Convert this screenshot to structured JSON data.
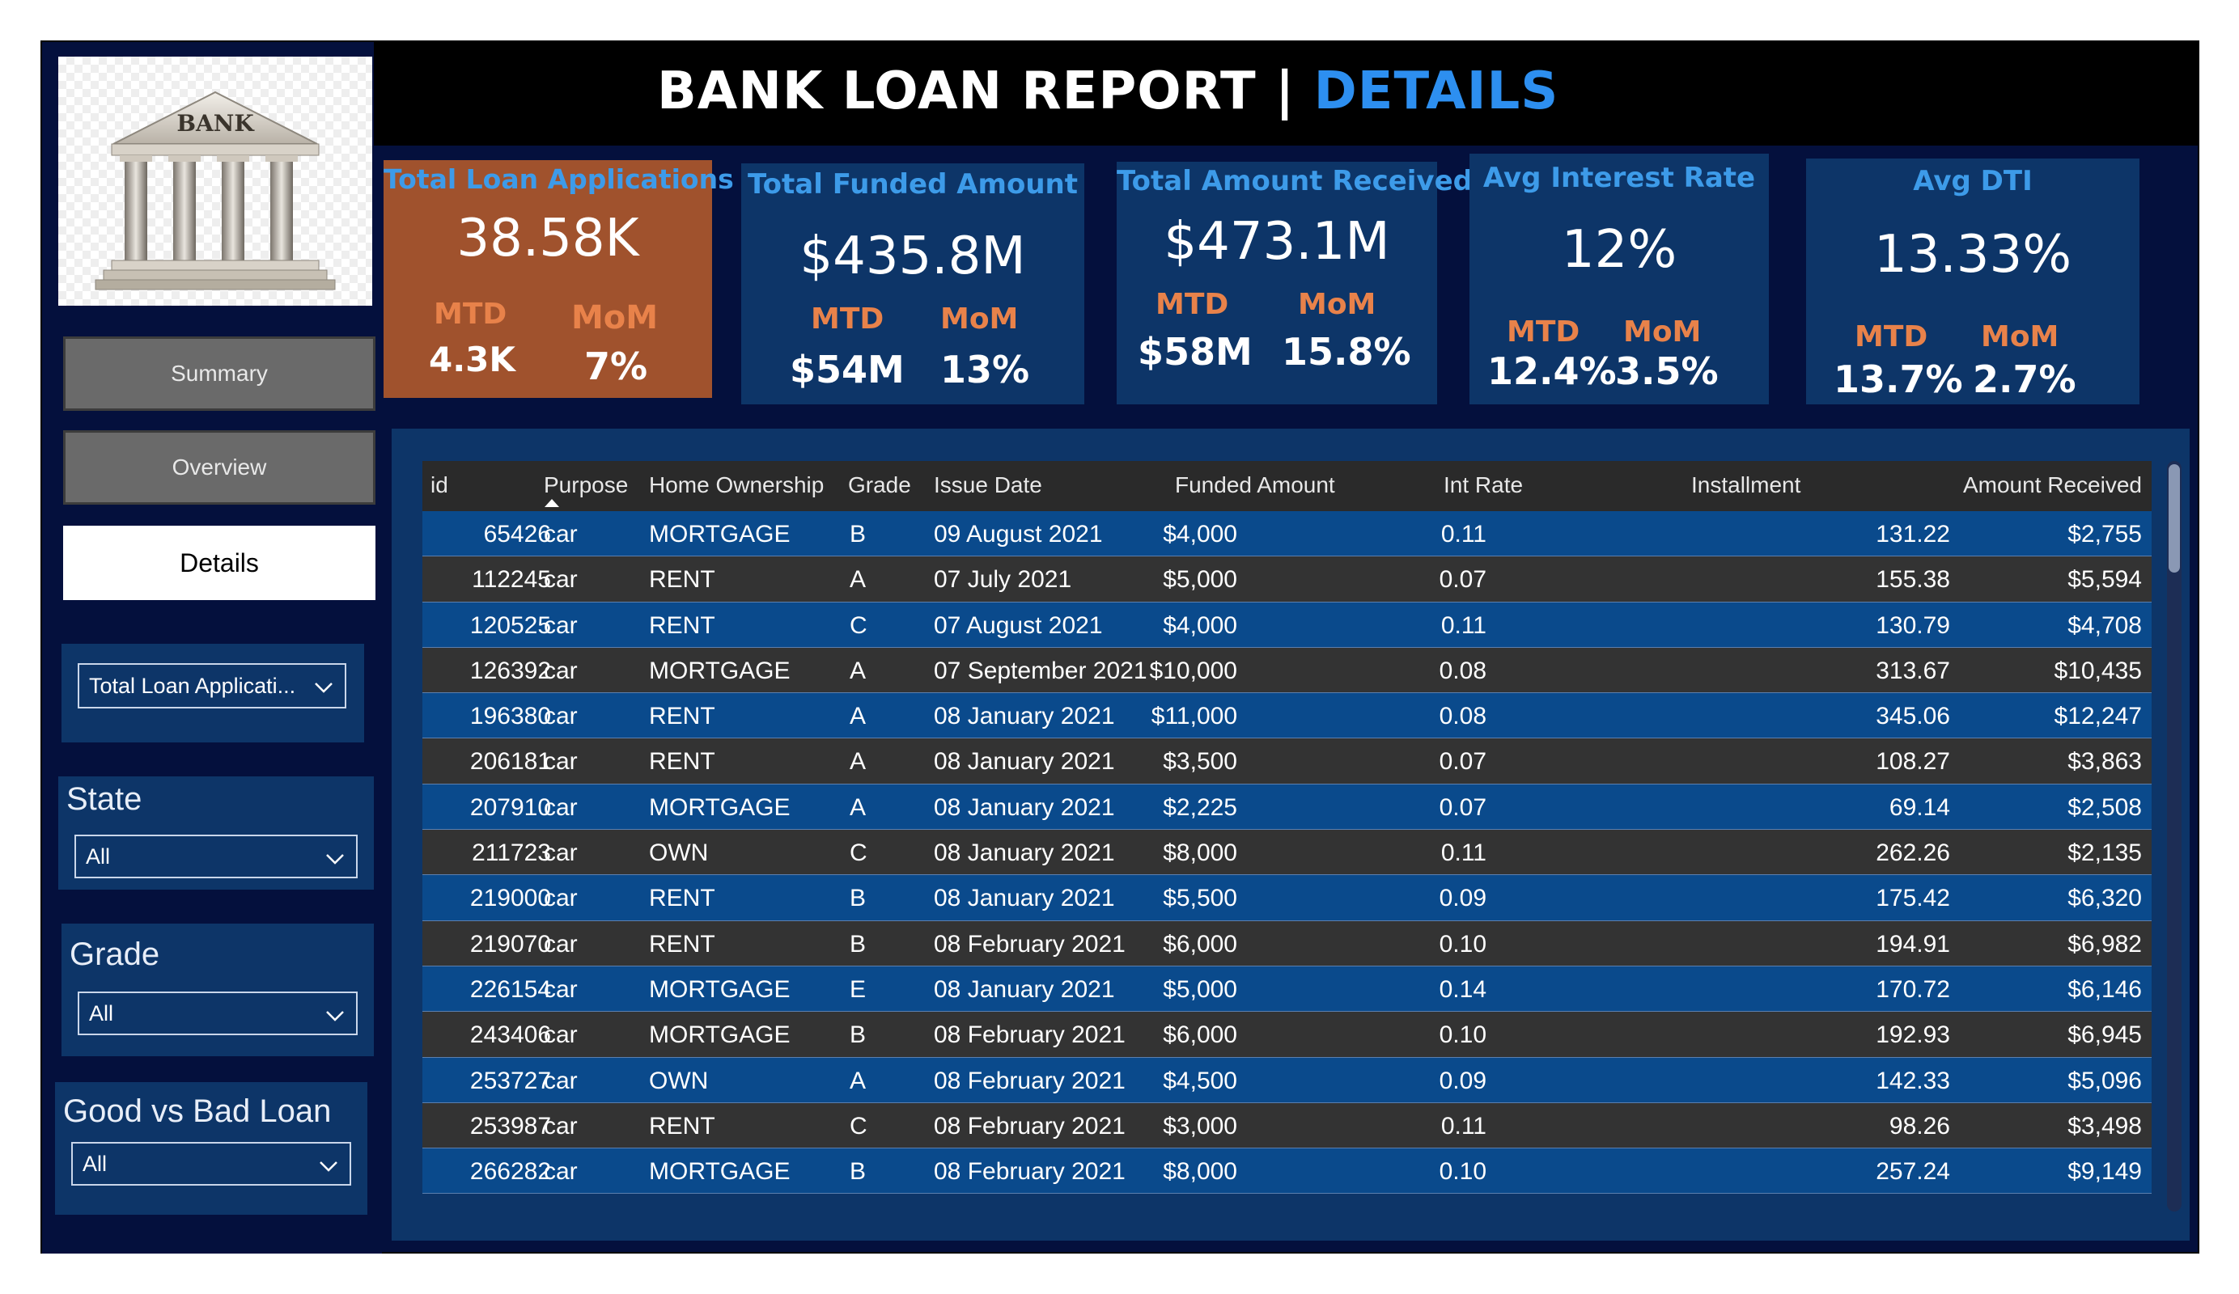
{
  "header": {
    "title_main": "BANK LOAN REPORT | ",
    "title_accent": "DETAILS"
  },
  "logo": {
    "text": "BANK"
  },
  "nav": {
    "summary": "Summary",
    "overview": "Overview",
    "details": "Details"
  },
  "filters": {
    "measure": {
      "value": "Total Loan Applicati..."
    },
    "state": {
      "title": "State",
      "value": "All"
    },
    "grade": {
      "title": "Grade",
      "value": "All"
    },
    "loan_type": {
      "title": "Good vs Bad Loan",
      "value": "All"
    }
  },
  "kpis": [
    {
      "title": "Total Loan Applications",
      "value": "38.58K",
      "mtd_label": "MTD",
      "mom_label": "MoM",
      "mtd": "4.3K",
      "mom": "7%"
    },
    {
      "title": "Total Funded Amount",
      "value": "$435.8M",
      "mtd_label": "MTD",
      "mom_label": "MoM",
      "mtd": "$54M",
      "mom": "13%"
    },
    {
      "title": "Total Amount Received",
      "value": "$473.1M",
      "mtd_label": "MTD",
      "mom_label": "MoM",
      "mtd": "$58M",
      "mom": "15.8%"
    },
    {
      "title": "Avg Interest Rate",
      "value": "12%",
      "mtd_label": "MTD",
      "mom_label": "MoM",
      "mtd": "12.4%",
      "mom": "3.5%"
    },
    {
      "title": "Avg DTI",
      "value": "13.33%",
      "mtd_label": "MTD",
      "mom_label": "MoM",
      "mtd": "13.7%",
      "mom": "2.7%"
    }
  ],
  "colors": {
    "highlight_card": "#a0522d",
    "card": "#0d3568",
    "accent": "#2d8ff0",
    "kpi_title": "#3d9be9",
    "kpi_label": "#e8824a"
  },
  "table": {
    "columns": [
      "id",
      "Purpose",
      "Home Ownership",
      "Grade",
      "Issue Date",
      "Funded Amount",
      "Int Rate",
      "Installment",
      "Amount Received"
    ],
    "sort_column": "Purpose",
    "rows": [
      [
        "65426",
        "car",
        "MORTGAGE",
        "B",
        "09 August 2021",
        "$4,000",
        "0.11",
        "131.22",
        "$2,755"
      ],
      [
        "112245",
        "car",
        "RENT",
        "A",
        "07 July 2021",
        "$5,000",
        "0.07",
        "155.38",
        "$5,594"
      ],
      [
        "120525",
        "car",
        "RENT",
        "C",
        "07 August 2021",
        "$4,000",
        "0.11",
        "130.79",
        "$4,708"
      ],
      [
        "126392",
        "car",
        "MORTGAGE",
        "A",
        "07 September 2021",
        "$10,000",
        "0.08",
        "313.67",
        "$10,435"
      ],
      [
        "196380",
        "car",
        "RENT",
        "A",
        "08 January 2021",
        "$11,000",
        "0.08",
        "345.06",
        "$12,247"
      ],
      [
        "206181",
        "car",
        "RENT",
        "A",
        "08 January 2021",
        "$3,500",
        "0.07",
        "108.27",
        "$3,863"
      ],
      [
        "207910",
        "car",
        "MORTGAGE",
        "A",
        "08 January 2021",
        "$2,225",
        "0.07",
        "69.14",
        "$2,508"
      ],
      [
        "211723",
        "car",
        "OWN",
        "C",
        "08 January 2021",
        "$8,000",
        "0.11",
        "262.26",
        "$2,135"
      ],
      [
        "219000",
        "car",
        "RENT",
        "B",
        "08 January 2021",
        "$5,500",
        "0.09",
        "175.42",
        "$6,320"
      ],
      [
        "219070",
        "car",
        "RENT",
        "B",
        "08 February 2021",
        "$6,000",
        "0.10",
        "194.91",
        "$6,982"
      ],
      [
        "226154",
        "car",
        "MORTGAGE",
        "E",
        "08 January 2021",
        "$5,000",
        "0.14",
        "170.72",
        "$6,146"
      ],
      [
        "243406",
        "car",
        "MORTGAGE",
        "B",
        "08 February 2021",
        "$6,000",
        "0.10",
        "192.93",
        "$6,945"
      ],
      [
        "253727",
        "car",
        "OWN",
        "A",
        "08 February 2021",
        "$4,500",
        "0.09",
        "142.33",
        "$5,096"
      ],
      [
        "253987",
        "car",
        "RENT",
        "C",
        "08 February 2021",
        "$3,000",
        "0.11",
        "98.26",
        "$3,498"
      ],
      [
        "266282",
        "car",
        "MORTGAGE",
        "B",
        "08 February 2021",
        "$8,000",
        "0.10",
        "257.24",
        "$9,149"
      ]
    ]
  }
}
